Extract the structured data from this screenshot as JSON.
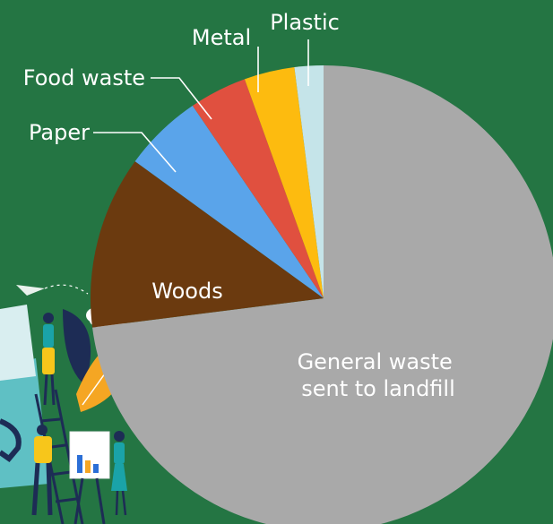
{
  "chart_data": {
    "type": "pie",
    "title": "",
    "start": "top",
    "direction": "clockwise",
    "legend": "none",
    "slices": [
      {
        "label_lines": [
          "General waste",
          "sent to landfill"
        ],
        "value": 73.0,
        "color": "#a9a9a9"
      },
      {
        "label_lines": [
          "Woods"
        ],
        "value": 12.0,
        "color": "#6b3a0f"
      },
      {
        "label_lines": [
          "Paper"
        ],
        "value": 5.5,
        "color": "#5aa4ea"
      },
      {
        "label_lines": [
          "Food waste"
        ],
        "value": 4.0,
        "color": "#e0503f"
      },
      {
        "label_lines": [
          "Metal"
        ],
        "value": 3.5,
        "color": "#fdbb0f"
      },
      {
        "label_lines": [
          "Plastic"
        ],
        "value": 2.0,
        "color": "#c5e4e9"
      }
    ]
  },
  "illustration": {
    "description_icon": "people-with-recycling-and-chart-icon"
  }
}
